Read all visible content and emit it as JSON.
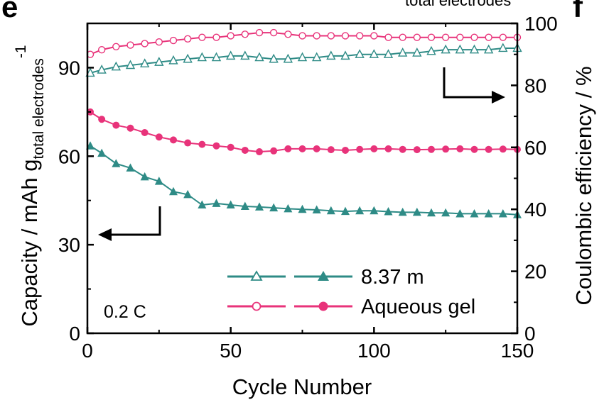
{
  "chart_data": {
    "type": "scatter",
    "panel_label": "e",
    "side_panel_label": "f",
    "cropped_text": "total electrodes",
    "xlabel": "Cycle Number",
    "ylabel_left": "Capacity / mAh g",
    "ylabel_left_sub": "total electrodes",
    "ylabel_left_sup": "-1",
    "ylabel_right": "Coulombic efficiency / %",
    "xlim": [
      0,
      150
    ],
    "ylim_left": [
      0,
      105
    ],
    "ylim_right": [
      0,
      100
    ],
    "x_ticks": [
      0,
      50,
      100,
      150
    ],
    "y_left_ticks": [
      0,
      30,
      60,
      90
    ],
    "y_right_ticks": [
      0,
      20,
      40,
      60,
      80,
      100
    ],
    "x_tick_labels": [
      "0",
      "50",
      "100",
      "150"
    ],
    "y_left_tick_labels": [
      "0",
      "30",
      "60",
      "90"
    ],
    "y_right_tick_labels": [
      "0",
      "20",
      "40",
      "60",
      "80",
      "100"
    ],
    "annotation": "0.2 C",
    "legend": [
      {
        "label": "8.37 m",
        "color": "#2e8b86"
      },
      {
        "label": "Aqueous gel",
        "color": "#e8337a"
      }
    ],
    "series": [
      {
        "name": "8.37 m",
        "kind": "capacity",
        "axis": "left",
        "marker": "filled-triangle",
        "color": "#2e8b86",
        "points": [
          [
            1,
            63.5
          ],
          [
            5,
            61
          ],
          [
            10,
            57.5
          ],
          [
            15,
            56
          ],
          [
            20,
            53
          ],
          [
            25,
            51.5
          ],
          [
            30,
            48
          ],
          [
            35,
            47
          ],
          [
            40,
            43.5
          ],
          [
            45,
            44
          ],
          [
            50,
            43.5
          ],
          [
            55,
            43
          ],
          [
            60,
            42.8
          ],
          [
            65,
            42.5
          ],
          [
            70,
            42.2
          ],
          [
            75,
            42
          ],
          [
            80,
            41.8
          ],
          [
            85,
            41.5
          ],
          [
            90,
            41.3
          ],
          [
            95,
            41.5
          ],
          [
            100,
            41.5
          ],
          [
            105,
            41.2
          ],
          [
            110,
            41
          ],
          [
            115,
            41
          ],
          [
            120,
            40.8
          ],
          [
            125,
            40.8
          ],
          [
            130,
            40.5
          ],
          [
            135,
            40.5
          ],
          [
            140,
            40.5
          ],
          [
            145,
            40.5
          ],
          [
            150,
            40.2
          ]
        ]
      },
      {
        "name": "Aqueous gel",
        "kind": "capacity",
        "axis": "left",
        "marker": "filled-circle",
        "color": "#e8337a",
        "points": [
          [
            1,
            75
          ],
          [
            5,
            72.5
          ],
          [
            10,
            70.5
          ],
          [
            15,
            69.5
          ],
          [
            20,
            68
          ],
          [
            25,
            66.5
          ],
          [
            30,
            65.5
          ],
          [
            35,
            64.5
          ],
          [
            40,
            64
          ],
          [
            45,
            63.5
          ],
          [
            50,
            63
          ],
          [
            55,
            62
          ],
          [
            60,
            61.5
          ],
          [
            65,
            61.8
          ],
          [
            70,
            62.5
          ],
          [
            75,
            62.5
          ],
          [
            80,
            62.5
          ],
          [
            85,
            62.2
          ],
          [
            90,
            62
          ],
          [
            95,
            62.3
          ],
          [
            100,
            62.5
          ],
          [
            105,
            62.5
          ],
          [
            110,
            62.3
          ],
          [
            115,
            62.2
          ],
          [
            120,
            62.3
          ],
          [
            125,
            62.4
          ],
          [
            130,
            62.5
          ],
          [
            135,
            62.3
          ],
          [
            140,
            62.3
          ],
          [
            145,
            62.4
          ],
          [
            150,
            62.3
          ]
        ]
      },
      {
        "name": "8.37 m",
        "kind": "coulombic-efficiency",
        "axis": "right",
        "marker": "open-triangle",
        "color": "#2e8b86",
        "points": [
          [
            1,
            84
          ],
          [
            5,
            85
          ],
          [
            10,
            86
          ],
          [
            15,
            86.5
          ],
          [
            20,
            87
          ],
          [
            25,
            87.5
          ],
          [
            30,
            88
          ],
          [
            35,
            88.5
          ],
          [
            40,
            89
          ],
          [
            45,
            89
          ],
          [
            50,
            89.5
          ],
          [
            55,
            89.5
          ],
          [
            60,
            89
          ],
          [
            65,
            88.5
          ],
          [
            70,
            88.5
          ],
          [
            75,
            89
          ],
          [
            80,
            89
          ],
          [
            85,
            89.5
          ],
          [
            90,
            89.5
          ],
          [
            95,
            90
          ],
          [
            100,
            90
          ],
          [
            105,
            90
          ],
          [
            110,
            90.5
          ],
          [
            115,
            90.5
          ],
          [
            120,
            91
          ],
          [
            125,
            91.5
          ],
          [
            130,
            91.5
          ],
          [
            135,
            91.5
          ],
          [
            140,
            91.5
          ],
          [
            145,
            92
          ],
          [
            150,
            92
          ]
        ]
      },
      {
        "name": "Aqueous gel",
        "kind": "coulombic-efficiency",
        "axis": "right",
        "marker": "open-circle",
        "color": "#e8337a",
        "points": [
          [
            1,
            90
          ],
          [
            5,
            91.5
          ],
          [
            10,
            92.5
          ],
          [
            15,
            93
          ],
          [
            20,
            93.5
          ],
          [
            25,
            94
          ],
          [
            30,
            94.5
          ],
          [
            35,
            95
          ],
          [
            40,
            95.5
          ],
          [
            45,
            95.5
          ],
          [
            50,
            96
          ],
          [
            55,
            96.5
          ],
          [
            60,
            97
          ],
          [
            65,
            97
          ],
          [
            70,
            96.5
          ],
          [
            75,
            96
          ],
          [
            80,
            96
          ],
          [
            85,
            96
          ],
          [
            90,
            96
          ],
          [
            95,
            96
          ],
          [
            100,
            96
          ],
          [
            105,
            95.5
          ],
          [
            110,
            95.5
          ],
          [
            115,
            95.5
          ],
          [
            120,
            95.5
          ],
          [
            125,
            95.5
          ],
          [
            130,
            95.5
          ],
          [
            135,
            95.5
          ],
          [
            140,
            95.5
          ],
          [
            145,
            95.5
          ],
          [
            150,
            95.5
          ]
        ]
      }
    ]
  }
}
